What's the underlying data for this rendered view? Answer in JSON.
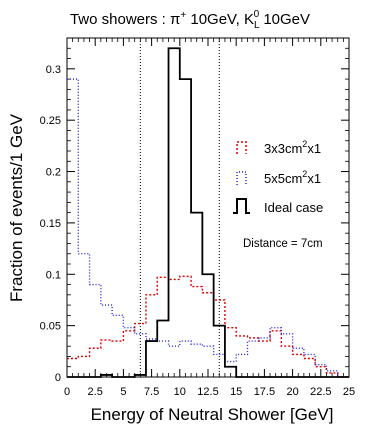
{
  "chart_data": {
    "type": "line",
    "title": {
      "prefix": "Two showers : π",
      "sup1": "+",
      "mid": " 10GeV, K",
      "sub2": "L",
      "sup2": "0",
      "suffix": " 10GeV"
    },
    "xlabel": "Energy of Neutral Shower [GeV]",
    "ylabel": "Fraction of events/1 GeV",
    "xlim": [
      0,
      25
    ],
    "ylim": [
      0,
      0.33
    ],
    "xticks": [
      0,
      2.5,
      5,
      7.5,
      10,
      12.5,
      15,
      17.5,
      20,
      22.5,
      25
    ],
    "xtick_labels": [
      "0",
      "2.5",
      "5",
      "7.5",
      "10",
      "12.5",
      "15",
      "17.5",
      "20",
      "22.5",
      "25"
    ],
    "yticks": [
      0,
      0.05,
      0.1,
      0.15,
      0.2,
      0.25,
      0.3
    ],
    "ytick_labels": [
      "0",
      "0.05",
      "0.1",
      "0.15",
      "0.2",
      "0.25",
      "0.3"
    ],
    "bin_edges": [
      0,
      1,
      2,
      3,
      4,
      5,
      6,
      7,
      8,
      9,
      10,
      11,
      12,
      13,
      14,
      15,
      16,
      17,
      18,
      19,
      20,
      21,
      22,
      23,
      24,
      25
    ],
    "series": [
      {
        "name": "3x3cm",
        "name_sup": "2",
        "name_suffix": "x1",
        "color": "#e00000",
        "dash": "2,2",
        "values": [
          0.018,
          0.02,
          0.028,
          0.036,
          0.035,
          0.045,
          0.052,
          0.08,
          0.097,
          0.095,
          0.098,
          0.088,
          0.082,
          0.075,
          0.048,
          0.04,
          0.038,
          0.035,
          0.045,
          0.03,
          0.022,
          0.018,
          0.01,
          0.004,
          0.0
        ]
      },
      {
        "name": "5x5cm",
        "name_sup": "2",
        "name_suffix": "x1",
        "color": "#2020e0",
        "dash": "1,2",
        "values": [
          0.29,
          0.12,
          0.09,
          0.07,
          0.06,
          0.048,
          0.042,
          0.037,
          0.035,
          0.03,
          0.035,
          0.032,
          0.03,
          0.022,
          0.015,
          0.022,
          0.035,
          0.038,
          0.048,
          0.042,
          0.028,
          0.022,
          0.012,
          0.006,
          0.0
        ]
      },
      {
        "name": "Ideal case",
        "color": "#000000",
        "dash": "",
        "values": [
          0.0,
          0.0,
          0.0,
          0.002,
          0.0,
          0.0,
          0.002,
          0.035,
          0.055,
          0.32,
          0.29,
          0.16,
          0.1,
          0.05,
          0.01,
          0.0,
          0.0,
          0.0,
          0.0,
          0.0,
          0.0,
          0.0,
          0.0,
          0.0,
          0.0
        ]
      }
    ],
    "vlines": [
      6.5,
      13.5
    ],
    "legend_position": "right",
    "annotation": "Distance = 7cm",
    "grid": false
  }
}
